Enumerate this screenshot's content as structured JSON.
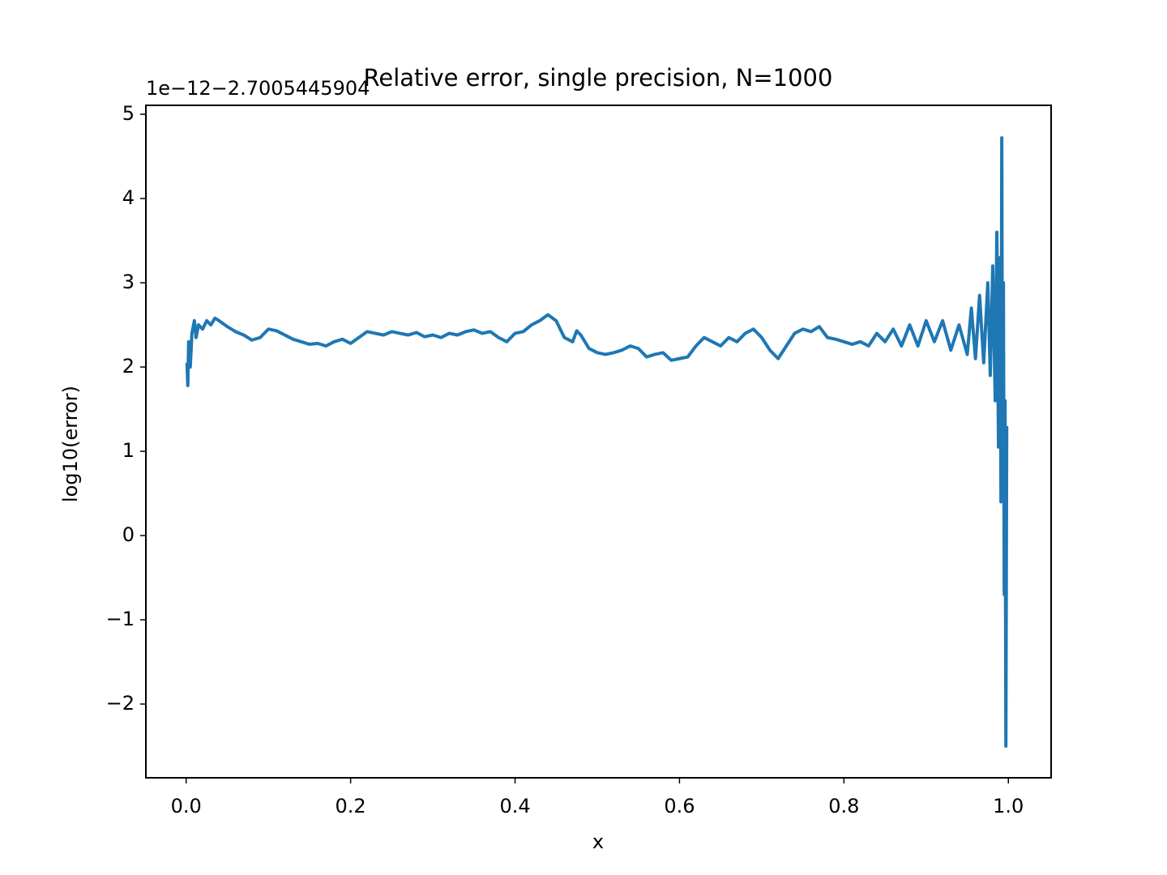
{
  "chart_data": {
    "type": "line",
    "title": "Relative error, single precision, N=1000",
    "x_label": "x",
    "y_label": "log10(error)",
    "y_offset_label": "1e−12−2.7005445904",
    "xlim": [
      -0.049,
      1.052
    ],
    "ylim": [
      -2.875,
      5.106
    ],
    "xticks": [
      {
        "value": 0,
        "label": "0.0"
      },
      0.2,
      0.4,
      0.6,
      0.8,
      {
        "value": 1,
        "label": "1.0"
      }
    ],
    "yticks": [
      {
        "value": -2,
        "label": "−2"
      },
      {
        "value": -1,
        "label": "−1"
      },
      0,
      1,
      2,
      3,
      4,
      5
    ],
    "grid": false,
    "series": [
      {
        "color": "#1f77b4",
        "x": [
          0.001,
          0.002,
          0.003,
          0.005,
          0.007,
          0.01,
          0.012,
          0.015,
          0.02,
          0.025,
          0.03,
          0.035,
          0.04,
          0.05,
          0.06,
          0.07,
          0.08,
          0.09,
          0.1,
          0.11,
          0.12,
          0.13,
          0.14,
          0.15,
          0.16,
          0.17,
          0.18,
          0.19,
          0.2,
          0.21,
          0.22,
          0.23,
          0.24,
          0.25,
          0.26,
          0.27,
          0.28,
          0.29,
          0.3,
          0.31,
          0.32,
          0.33,
          0.34,
          0.35,
          0.36,
          0.37,
          0.38,
          0.39,
          0.4,
          0.41,
          0.42,
          0.43,
          0.44,
          0.45,
          0.46,
          0.47,
          0.475,
          0.48,
          0.49,
          0.5,
          0.51,
          0.52,
          0.53,
          0.54,
          0.55,
          0.56,
          0.57,
          0.58,
          0.59,
          0.6,
          0.61,
          0.62,
          0.63,
          0.64,
          0.65,
          0.66,
          0.67,
          0.68,
          0.69,
          0.7,
          0.71,
          0.72,
          0.73,
          0.74,
          0.75,
          0.76,
          0.77,
          0.78,
          0.79,
          0.8,
          0.81,
          0.82,
          0.83,
          0.84,
          0.85,
          0.86,
          0.87,
          0.88,
          0.89,
          0.9,
          0.91,
          0.92,
          0.93,
          0.94,
          0.95,
          0.955,
          0.96,
          0.965,
          0.97,
          0.975,
          0.978,
          0.981,
          0.984,
          0.986,
          0.988,
          0.99,
          0.991,
          0.992,
          0.993,
          0.994,
          0.995,
          0.996,
          0.997,
          0.998
        ],
        "values": [
          2.05,
          1.78,
          2.3,
          2.0,
          2.4,
          2.55,
          2.35,
          2.5,
          2.45,
          2.55,
          2.5,
          2.58,
          2.55,
          2.48,
          2.42,
          2.38,
          2.32,
          2.35,
          2.45,
          2.43,
          2.38,
          2.33,
          2.3,
          2.27,
          2.28,
          2.25,
          2.3,
          2.33,
          2.28,
          2.35,
          2.42,
          2.4,
          2.38,
          2.42,
          2.4,
          2.38,
          2.41,
          2.36,
          2.38,
          2.35,
          2.4,
          2.38,
          2.42,
          2.44,
          2.4,
          2.42,
          2.35,
          2.3,
          2.4,
          2.42,
          2.5,
          2.55,
          2.62,
          2.55,
          2.35,
          2.3,
          2.43,
          2.38,
          2.22,
          2.17,
          2.15,
          2.17,
          2.2,
          2.25,
          2.22,
          2.12,
          2.15,
          2.17,
          2.08,
          2.1,
          2.12,
          2.25,
          2.35,
          2.3,
          2.25,
          2.35,
          2.3,
          2.4,
          2.45,
          2.35,
          2.2,
          2.1,
          2.25,
          2.4,
          2.45,
          2.42,
          2.48,
          2.35,
          2.33,
          2.3,
          2.27,
          2.3,
          2.25,
          2.4,
          2.3,
          2.45,
          2.25,
          2.5,
          2.25,
          2.55,
          2.3,
          2.55,
          2.2,
          2.5,
          2.15,
          2.7,
          2.1,
          2.85,
          2.05,
          3.0,
          1.9,
          3.2,
          1.6,
          3.6,
          1.05,
          3.3,
          0.4,
          4.72,
          0.5,
          3.0,
          -0.7,
          1.6,
          -2.5,
          1.3
        ]
      }
    ]
  }
}
